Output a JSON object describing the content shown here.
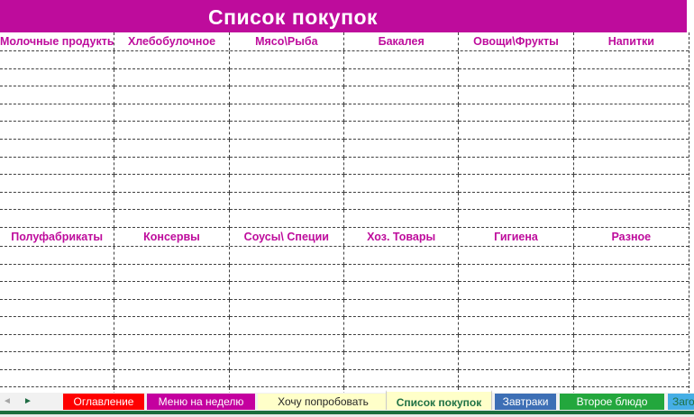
{
  "title": "Список покупок",
  "colors": {
    "banner_bg": "#BE0C9C",
    "header_text": "#BE0C9C",
    "grid_line": "#3f3f3f",
    "window_edge_green": "#1B6C3D"
  },
  "table": {
    "sections": [
      {
        "columns": [
          "Молочные продукты",
          "Хлебобулочное",
          "Мясо\\Рыба",
          "Бакалея",
          "Овощи\\Фрукты",
          "Напитки"
        ]
      },
      {
        "columns": [
          "Полуфабрикаты",
          "Консервы",
          "Соусы\\ Специи",
          "Хоз. Товары",
          "Гигиена",
          "Разное"
        ]
      }
    ]
  },
  "layout": {
    "grid_cols": 6,
    "grid_rows": [
      10,
      9
    ]
  },
  "tabbar": {
    "nav_prev": "◄",
    "nav_next": "►",
    "tabs": [
      {
        "label": "Оглавление",
        "bg": "#FE0000",
        "fg": "#FFFFFF"
      },
      {
        "label": "Меню на неделю",
        "bg": "#C4009F",
        "fg": "#FFFFFF"
      },
      {
        "label": "Хочу попробовать",
        "bg": "#FFFFC9",
        "fg": "#262626"
      },
      {
        "label": "Список покупок",
        "bg": "#FFFFC9",
        "fg": "#1F7145",
        "active": true
      },
      {
        "label": "Завтраки",
        "bg": "#3D6FB5",
        "fg": "#FFFFFF"
      },
      {
        "label": "Второе блюдо",
        "bg": "#23A73D",
        "fg": "#FFFFFF"
      },
      {
        "label": "Загото",
        "bg": "#45AEE5",
        "fg": "#1F7145"
      }
    ]
  }
}
